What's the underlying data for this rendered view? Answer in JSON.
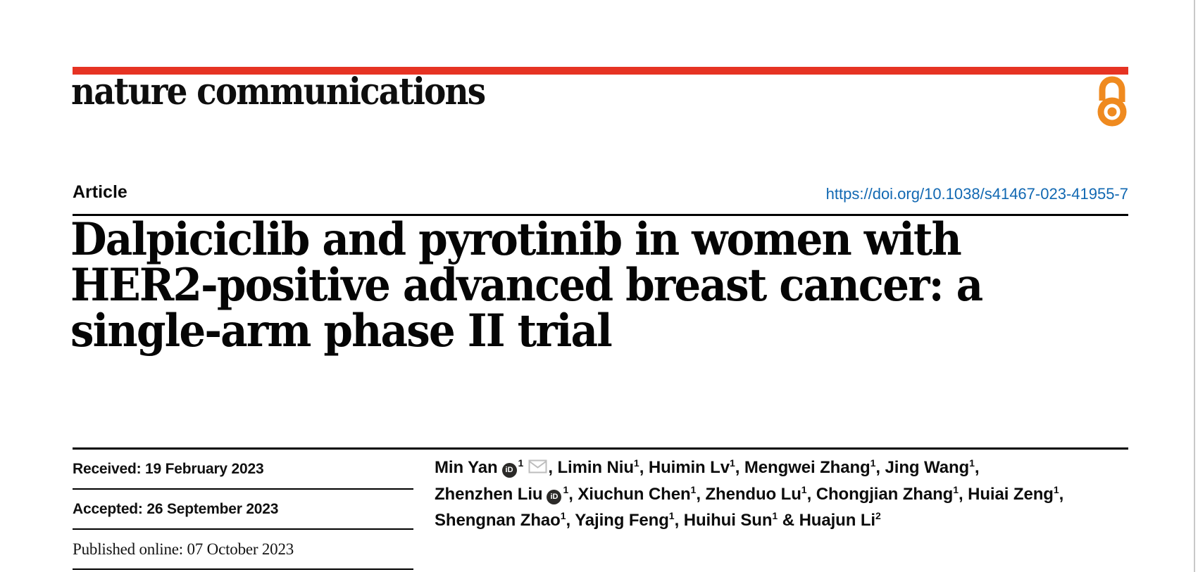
{
  "brand": {
    "journal": "nature communications",
    "accent_red": "#e63323",
    "open_access_orange": "#ef8a1f",
    "envelope_grey": "#bdbdbd",
    "orcid_black": "#2b2a28"
  },
  "article": {
    "type_label": "Article",
    "doi": "https://doi.org/10.1038/s41467-023-41955-7",
    "doi_color": "#1168b2",
    "title_lines": [
      "Dalpiciclib and pyrotinib in women with",
      "HER2-positive advanced breast cancer: a",
      "single-arm phase II trial"
    ]
  },
  "history": {
    "received": "Received: 19 February 2023",
    "accepted": "Accepted: 26 September 2023",
    "published": "Published online: 07 October 2023"
  },
  "authors": {
    "comma_separator": ", ",
    "last_separator": " & ",
    "orcid_icon_label": "iD",
    "list": [
      {
        "name": "Min Yan",
        "sup": "1",
        "orcid": true,
        "email": true
      },
      {
        "name": "Limin Niu",
        "sup": "1"
      },
      {
        "name": "Huimin Lv",
        "sup": "1"
      },
      {
        "name": "Mengwei Zhang",
        "sup": "1"
      },
      {
        "name": "Jing Wang",
        "sup": "1",
        "break_after": true
      },
      {
        "name": "Zhenzhen Liu",
        "sup": "1",
        "orcid": true
      },
      {
        "name": "Xiuchun Chen",
        "sup": "1"
      },
      {
        "name": "Zhenduo Lu",
        "sup": "1"
      },
      {
        "name": "Chongjian Zhang",
        "sup": "1"
      },
      {
        "name": "Huiai Zeng",
        "sup": "1",
        "break_after": true
      },
      {
        "name": "Shengnan Zhao",
        "sup": "1"
      },
      {
        "name": "Yajing Feng",
        "sup": "1"
      },
      {
        "name": "Huihui Sun",
        "sup": "1"
      },
      {
        "name": "Huajun Li",
        "sup": "2"
      }
    ]
  }
}
